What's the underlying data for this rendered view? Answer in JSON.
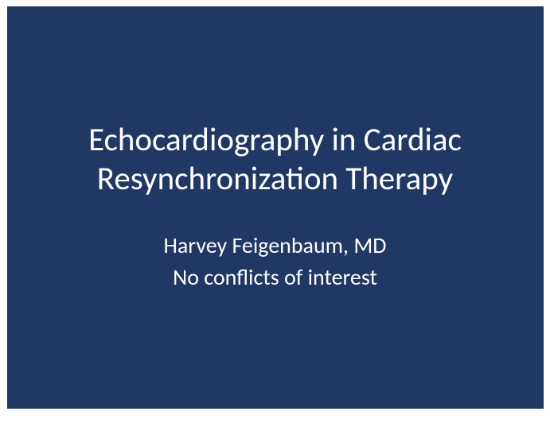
{
  "slide": {
    "title": "Echocardiography in Cardiac Resynchronization Therapy",
    "author": "Harvey Feigenbaum, MD",
    "disclosure": "No conflicts of interest",
    "background_color": "#1f3864",
    "page_background": "#ffffff",
    "title_color": "#ffffff",
    "subtitle_color": "#ffffff",
    "title_fontsize": 41,
    "subtitle_fontsize": 28,
    "font_family": "Calibri"
  }
}
